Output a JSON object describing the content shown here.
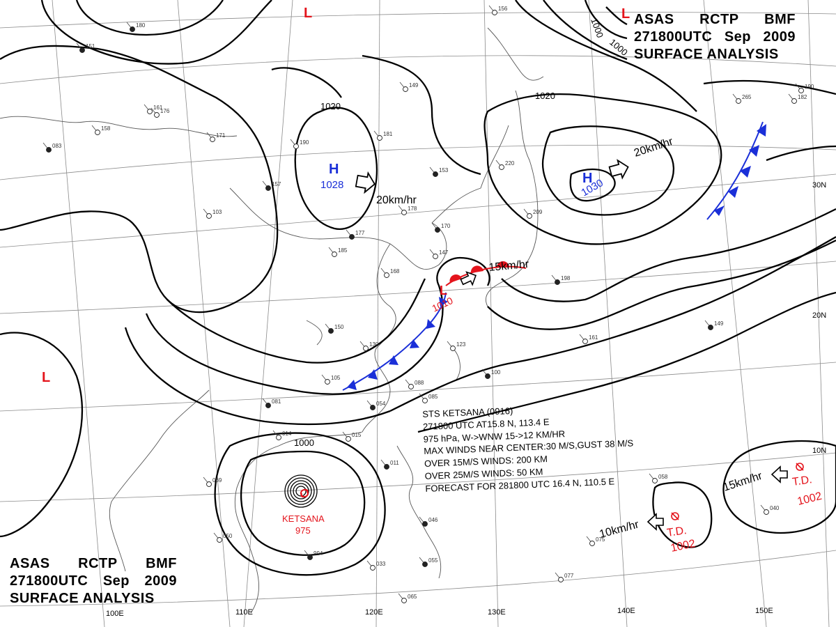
{
  "header_top_right": {
    "line1": [
      "ASAS",
      "RCTP",
      "BMF"
    ],
    "line2": [
      "271800UTC",
      "Sep",
      "2009"
    ],
    "line3": "SURFACE  ANALYSIS"
  },
  "header_bottom_left": {
    "line1": [
      "ASAS",
      "RCTP",
      "BMF"
    ],
    "line2": [
      "271800UTC",
      "Sep",
      "2009"
    ],
    "line3": "SURFACE  ANALYSIS"
  },
  "latitude_labels": [
    "30N",
    "20N",
    "10N"
  ],
  "longitude_labels": [
    "100E",
    "110E",
    "120E",
    "130E",
    "140E",
    "150E"
  ],
  "isobar_labels": [
    "1020",
    "1020",
    "1000",
    "1000",
    "1000"
  ],
  "high_centers": [
    {
      "symbol": "H",
      "pressure": "1028",
      "speed": "20km/hr"
    },
    {
      "symbol": "H",
      "pressure": "1030",
      "speed": "20km/hr"
    }
  ],
  "low_centers": [
    {
      "symbol": "L",
      "pressure": "1010",
      "speed": "15km/hr"
    },
    {
      "symbol": "L"
    },
    {
      "symbol": "L"
    },
    {
      "symbol": "L"
    }
  ],
  "typhoon": {
    "name": "KETSANA",
    "pressure": "975",
    "info": [
      "STS  KETSANA  (0916)",
      "271800 UTC  AT15.8 N, 113.4 E",
      "975 hPa, W->WNW  15->12 KM/HR",
      "MAX WINDS NEAR CENTER:30 M/S,GUST 38 M/S",
      "OVER 15M/S WINDS: 200 KM",
      "OVER 25M/S WINDS: 50 KM",
      "FORECAST FOR 281800 UTC 16.4 N, 110.5 E"
    ]
  },
  "tropical_depressions": [
    {
      "label": "T.D.",
      "pressure": "1002",
      "speed": "10km/hr"
    },
    {
      "label": "T.D.",
      "pressure": "1002",
      "speed": "15km/hr"
    }
  ],
  "colors": {
    "isobar": "#000000",
    "high": "#1a2fd8",
    "low": "#e4141c",
    "cold_front": "#1a2fd8",
    "warm_front": "#e4141c",
    "grid": "#8a8a8a",
    "coast": "#555555"
  },
  "station_values": [
    "151",
    "161",
    "156",
    "180",
    "176",
    "158",
    "083",
    "171",
    "190",
    "157",
    "149",
    "181",
    "153",
    "220",
    "178",
    "177",
    "185",
    "168",
    "170",
    "147",
    "209",
    "198",
    "190",
    "182",
    "149",
    "161",
    "130",
    "150",
    "123",
    "105",
    "081",
    "088",
    "085",
    "054",
    "014",
    "015",
    "011",
    "069",
    "050",
    "994",
    "033",
    "065",
    "046",
    "077",
    "075",
    "055",
    "040",
    "103",
    "100",
    "265",
    "058"
  ]
}
